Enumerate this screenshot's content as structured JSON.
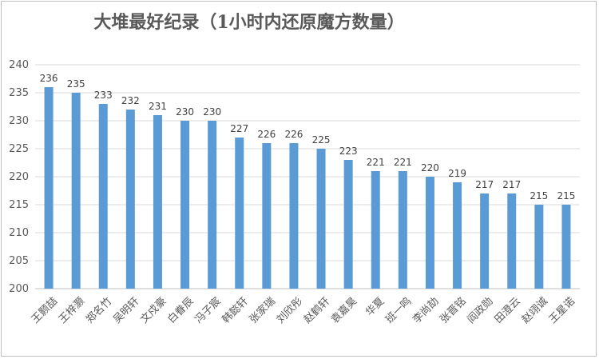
{
  "chart_data": {
    "type": "bar",
    "title": "大堆最好纪录（1小时内还原魔方数量）",
    "xlabel": "",
    "ylabel": "",
    "categories": [
      "王颢喆",
      "王梓灏",
      "郑名竹",
      "吴明轩",
      "文戍豪",
      "白眷辰",
      "冯子宸",
      "韩懿轩",
      "张家瑞",
      "刘欣彤",
      "赵鹤轩",
      "袁嘉昊",
      "华夏",
      "班一鸣",
      "李尚劼",
      "张晋铭",
      "阎政勋",
      "田澄云",
      "赵翊诚",
      "王星诺"
    ],
    "values": [
      236,
      235,
      233,
      232,
      231,
      230,
      230,
      227,
      226,
      226,
      225,
      223,
      221,
      221,
      220,
      219,
      217,
      217,
      215,
      215
    ],
    "ylim": [
      200,
      240
    ],
    "yticks": [
      200,
      205,
      210,
      215,
      220,
      225,
      230,
      235,
      240
    ],
    "grid": true,
    "legend": "none",
    "colors": {
      "bar": "#5b9bd5",
      "grid": "#d9d9d9",
      "axis": "#bfbfbf",
      "text": "#595959"
    }
  }
}
